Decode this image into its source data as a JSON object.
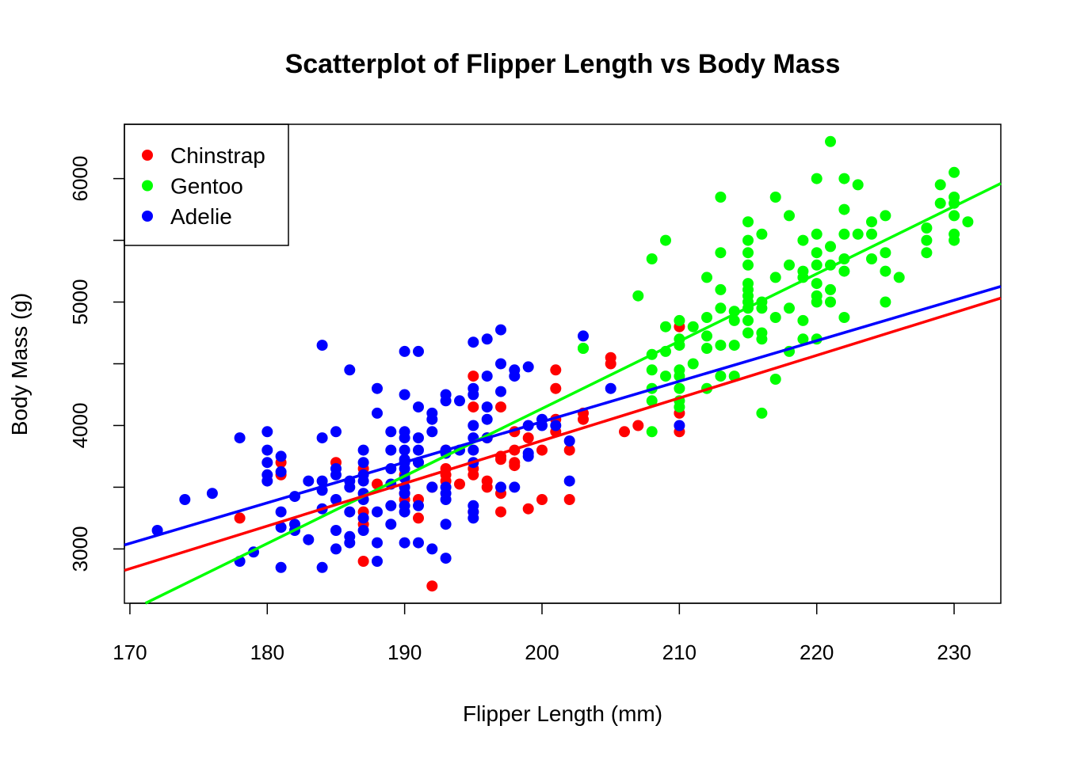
{
  "chart_data": {
    "type": "scatter",
    "title": "Scatterplot of Flipper Length vs Body Mass",
    "xlabel": "Flipper Length (mm)",
    "ylabel": "Body Mass (g)",
    "xlim": [
      169.6,
      233.4
    ],
    "ylim": [
      2560,
      6440
    ],
    "x_ticks": [
      170,
      180,
      190,
      200,
      210,
      220,
      230
    ],
    "y_ticks": [
      3000,
      4000,
      5000,
      6000
    ],
    "grid": false,
    "legend_position": "top-left",
    "series": [
      {
        "name": "Chinstrap",
        "color": "#ff0000",
        "fit_line": {
          "slope": 34.57,
          "intercept": -3037.2
        },
        "points": [
          [
            178,
            3250
          ],
          [
            181,
            3700
          ],
          [
            181,
            3600
          ],
          [
            185,
            3700
          ],
          [
            187,
            2900
          ],
          [
            187,
            3650
          ],
          [
            187,
            3300
          ],
          [
            187,
            3200
          ],
          [
            187,
            3250
          ],
          [
            188,
            3525
          ],
          [
            190,
            3450
          ],
          [
            190,
            3400
          ],
          [
            190,
            3600
          ],
          [
            191,
            3700
          ],
          [
            191,
            3250
          ],
          [
            191,
            3400
          ],
          [
            192,
            2700
          ],
          [
            192,
            3500
          ],
          [
            193,
            3800
          ],
          [
            193,
            3650
          ],
          [
            193,
            3550
          ],
          [
            193,
            3600
          ],
          [
            194,
            3525
          ],
          [
            195,
            4400
          ],
          [
            195,
            4150
          ],
          [
            195,
            3650
          ],
          [
            195,
            3600
          ],
          [
            195,
            3300
          ],
          [
            196,
            3900
          ],
          [
            196,
            3550
          ],
          [
            196,
            3500
          ],
          [
            197,
            4150
          ],
          [
            197,
            3750
          ],
          [
            197,
            3725
          ],
          [
            197,
            3450
          ],
          [
            197,
            3300
          ],
          [
            198,
            3950
          ],
          [
            198,
            3800
          ],
          [
            198,
            3700
          ],
          [
            198,
            3675
          ],
          [
            199,
            3900
          ],
          [
            199,
            3325
          ],
          [
            200,
            3800
          ],
          [
            200,
            3400
          ],
          [
            201,
            4450
          ],
          [
            201,
            4300
          ],
          [
            201,
            4050
          ],
          [
            201,
            3950
          ],
          [
            202,
            3800
          ],
          [
            202,
            3400
          ],
          [
            203,
            4050
          ],
          [
            203,
            4100
          ],
          [
            205,
            4550
          ],
          [
            205,
            4500
          ],
          [
            206,
            3950
          ],
          [
            207,
            4000
          ],
          [
            210,
            4800
          ],
          [
            210,
            4100
          ],
          [
            210,
            3950
          ]
        ]
      },
      {
        "name": "Gentoo",
        "color": "#00ff00",
        "fit_line": {
          "slope": 54.62,
          "intercept": -6787.3
        },
        "points": [
          [
            203,
            4625
          ],
          [
            203,
            4625
          ],
          [
            207,
            5050
          ],
          [
            208,
            5350
          ],
          [
            208,
            4450
          ],
          [
            208,
            4300
          ],
          [
            208,
            4200
          ],
          [
            208,
            3950
          ],
          [
            208,
            4575
          ],
          [
            209,
            5500
          ],
          [
            209,
            4800
          ],
          [
            209,
            4600
          ],
          [
            209,
            4400
          ],
          [
            210,
            4850
          ],
          [
            210,
            4700
          ],
          [
            210,
            4650
          ],
          [
            210,
            4450
          ],
          [
            210,
            4400
          ],
          [
            210,
            4300
          ],
          [
            210,
            4200
          ],
          [
            210,
            4150
          ],
          [
            211,
            4800
          ],
          [
            211,
            4500
          ],
          [
            212,
            5200
          ],
          [
            212,
            4875
          ],
          [
            212,
            4725
          ],
          [
            212,
            4625
          ],
          [
            212,
            4300
          ],
          [
            213,
            5850
          ],
          [
            213,
            5400
          ],
          [
            213,
            5100
          ],
          [
            213,
            4950
          ],
          [
            213,
            4650
          ],
          [
            213,
            4400
          ],
          [
            214,
            4925
          ],
          [
            214,
            4850
          ],
          [
            214,
            4650
          ],
          [
            214,
            4400
          ],
          [
            215,
            5650
          ],
          [
            215,
            5500
          ],
          [
            215,
            5400
          ],
          [
            215,
            5300
          ],
          [
            215,
            5150
          ],
          [
            215,
            5100
          ],
          [
            215,
            5050
          ],
          [
            215,
            5000
          ],
          [
            215,
            4950
          ],
          [
            215,
            4850
          ],
          [
            215,
            4750
          ],
          [
            216,
            5550
          ],
          [
            216,
            5000
          ],
          [
            216,
            4950
          ],
          [
            216,
            4750
          ],
          [
            216,
            4700
          ],
          [
            216,
            4100
          ],
          [
            217,
            5850
          ],
          [
            217,
            5200
          ],
          [
            217,
            4875
          ],
          [
            217,
            4375
          ],
          [
            218,
            5700
          ],
          [
            218,
            5300
          ],
          [
            218,
            4950
          ],
          [
            218,
            4600
          ],
          [
            219,
            5500
          ],
          [
            219,
            5250
          ],
          [
            219,
            5200
          ],
          [
            219,
            4850
          ],
          [
            219,
            4700
          ],
          [
            220,
            6000
          ],
          [
            220,
            5550
          ],
          [
            220,
            5400
          ],
          [
            220,
            5300
          ],
          [
            220,
            5150
          ],
          [
            220,
            5050
          ],
          [
            220,
            5000
          ],
          [
            220,
            4700
          ],
          [
            221,
            6300
          ],
          [
            221,
            5450
          ],
          [
            221,
            5300
          ],
          [
            221,
            5100
          ],
          [
            221,
            5000
          ],
          [
            222,
            6000
          ],
          [
            222,
            5750
          ],
          [
            222,
            5550
          ],
          [
            222,
            5350
          ],
          [
            222,
            5250
          ],
          [
            222,
            4875
          ],
          [
            223,
            5950
          ],
          [
            223,
            5550
          ],
          [
            224,
            5650
          ],
          [
            224,
            5550
          ],
          [
            224,
            5350
          ],
          [
            225,
            5700
          ],
          [
            225,
            5400
          ],
          [
            225,
            5250
          ],
          [
            225,
            5000
          ],
          [
            226,
            5200
          ],
          [
            228,
            5600
          ],
          [
            228,
            5500
          ],
          [
            228,
            5400
          ],
          [
            229,
            5950
          ],
          [
            229,
            5800
          ],
          [
            230,
            6050
          ],
          [
            230,
            5850
          ],
          [
            230,
            5800
          ],
          [
            230,
            5700
          ],
          [
            230,
            5550
          ],
          [
            230,
            5500
          ],
          [
            231,
            5650
          ]
        ]
      },
      {
        "name": "Adelie",
        "color": "#0000ff",
        "fit_line": {
          "slope": 32.83,
          "intercept": -2535.8
        },
        "points": [
          [
            172,
            3150
          ],
          [
            174,
            3400
          ],
          [
            176,
            3450
          ],
          [
            178,
            3900
          ],
          [
            178,
            2900
          ],
          [
            179,
            2975
          ],
          [
            180,
            3950
          ],
          [
            180,
            3800
          ],
          [
            180,
            3700
          ],
          [
            180,
            3600
          ],
          [
            180,
            3550
          ],
          [
            181,
            3750
          ],
          [
            181,
            3625
          ],
          [
            181,
            3300
          ],
          [
            181,
            3175
          ],
          [
            181,
            2850
          ],
          [
            182,
            3425
          ],
          [
            182,
            3200
          ],
          [
            182,
            3150
          ],
          [
            183,
            3550
          ],
          [
            183,
            3075
          ],
          [
            184,
            4650
          ],
          [
            184,
            3900
          ],
          [
            184,
            3550
          ],
          [
            184,
            3475
          ],
          [
            184,
            3325
          ],
          [
            184,
            2850
          ],
          [
            185,
            3950
          ],
          [
            185,
            3650
          ],
          [
            185,
            3600
          ],
          [
            185,
            3400
          ],
          [
            185,
            3150
          ],
          [
            185,
            3000
          ],
          [
            186,
            4450
          ],
          [
            186,
            3550
          ],
          [
            186,
            3500
          ],
          [
            186,
            3300
          ],
          [
            186,
            3100
          ],
          [
            186,
            3050
          ],
          [
            187,
            3800
          ],
          [
            187,
            3700
          ],
          [
            187,
            3600
          ],
          [
            187,
            3550
          ],
          [
            187,
            3450
          ],
          [
            187,
            3400
          ],
          [
            187,
            3250
          ],
          [
            187,
            3150
          ],
          [
            188,
            4300
          ],
          [
            188,
            4100
          ],
          [
            188,
            3300
          ],
          [
            188,
            3050
          ],
          [
            188,
            2900
          ],
          [
            189,
            3950
          ],
          [
            189,
            3800
          ],
          [
            189,
            3650
          ],
          [
            189,
            3525
          ],
          [
            189,
            3350
          ],
          [
            189,
            3200
          ],
          [
            190,
            4600
          ],
          [
            190,
            4250
          ],
          [
            190,
            3950
          ],
          [
            190,
            3900
          ],
          [
            190,
            3800
          ],
          [
            190,
            3725
          ],
          [
            190,
            3700
          ],
          [
            190,
            3650
          ],
          [
            190,
            3575
          ],
          [
            190,
            3500
          ],
          [
            190,
            3450
          ],
          [
            190,
            3350
          ],
          [
            190,
            3300
          ],
          [
            190,
            3050
          ],
          [
            191,
            4600
          ],
          [
            191,
            4150
          ],
          [
            191,
            3900
          ],
          [
            191,
            3800
          ],
          [
            191,
            3700
          ],
          [
            191,
            3350
          ],
          [
            191,
            3050
          ],
          [
            192,
            4100
          ],
          [
            192,
            4050
          ],
          [
            192,
            3950
          ],
          [
            192,
            3500
          ],
          [
            192,
            3000
          ],
          [
            193,
            4250
          ],
          [
            193,
            4200
          ],
          [
            193,
            3800
          ],
          [
            193,
            3775
          ],
          [
            193,
            3500
          ],
          [
            193,
            3450
          ],
          [
            193,
            3400
          ],
          [
            193,
            3200
          ],
          [
            193,
            2925
          ],
          [
            194,
            4200
          ],
          [
            194,
            3800
          ],
          [
            195,
            4675
          ],
          [
            195,
            4300
          ],
          [
            195,
            4250
          ],
          [
            195,
            4000
          ],
          [
            195,
            3900
          ],
          [
            195,
            3800
          ],
          [
            195,
            3700
          ],
          [
            195,
            3350
          ],
          [
            195,
            3300
          ],
          [
            195,
            3250
          ],
          [
            196,
            4700
          ],
          [
            196,
            4400
          ],
          [
            196,
            4150
          ],
          [
            196,
            4050
          ],
          [
            196,
            3900
          ],
          [
            197,
            4775
          ],
          [
            197,
            4500
          ],
          [
            197,
            4275
          ],
          [
            197,
            3500
          ],
          [
            198,
            4450
          ],
          [
            198,
            4400
          ],
          [
            198,
            3500
          ],
          [
            199,
            4475
          ],
          [
            199,
            4000
          ],
          [
            199,
            3775
          ],
          [
            199,
            3750
          ],
          [
            200,
            4050
          ],
          [
            200,
            4000
          ],
          [
            201,
            4000
          ],
          [
            202,
            3875
          ],
          [
            202,
            3550
          ],
          [
            203,
            4725
          ],
          [
            205,
            4300
          ],
          [
            210,
            4000
          ]
        ]
      }
    ]
  }
}
